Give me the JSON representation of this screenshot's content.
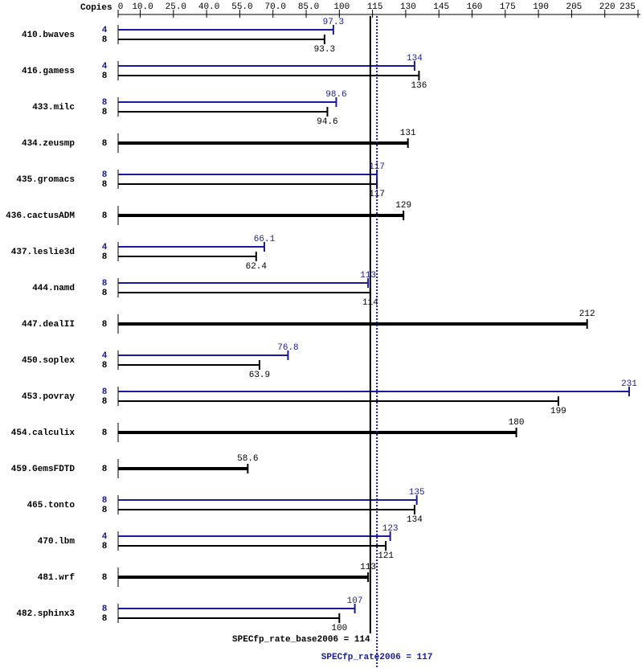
{
  "chart_data": {
    "type": "bar",
    "x_label": "Copies",
    "xlim": [
      0,
      235
    ],
    "xticks": [
      0,
      {
        "value": 10,
        "label": "10.0"
      },
      {
        "value": 25,
        "label": "25.0"
      },
      {
        "value": 40,
        "label": "40.0"
      },
      {
        "value": 55,
        "label": "55.0"
      },
      {
        "value": 70,
        "label": "70.0"
      },
      {
        "value": 85,
        "label": "85.0"
      },
      100,
      115,
      130,
      145,
      160,
      175,
      190,
      205,
      220,
      235
    ],
    "categories": [
      "410.bwaves",
      "416.gamess",
      "433.milc",
      "434.zeusmp",
      "435.gromacs",
      "436.cactusADM",
      "437.leslie3d",
      "444.namd",
      "447.dealII",
      "450.soplex",
      "453.povray",
      "454.calculix",
      "459.GemsFDTD",
      "465.tonto",
      "470.lbm",
      "481.wrf",
      "482.sphinx3"
    ],
    "series": [
      {
        "color": "#1a1aa0",
        "copies": [
          4,
          4,
          8,
          null,
          8,
          null,
          4,
          8,
          null,
          4,
          8,
          null,
          null,
          8,
          4,
          null,
          8
        ],
        "values": [
          97.3,
          134,
          98.6,
          null,
          117,
          null,
          66.1,
          113,
          null,
          76.8,
          231,
          null,
          null,
          135,
          123,
          null,
          107
        ]
      },
      {
        "color": "#000000",
        "copies": [
          8,
          8,
          8,
          8,
          8,
          8,
          8,
          8,
          8,
          8,
          8,
          8,
          8,
          8,
          8,
          8,
          8
        ],
        "values": [
          93.3,
          136,
          94.6,
          131,
          117,
          129,
          62.4,
          114,
          212,
          63.9,
          199,
          180,
          58.6,
          134,
          121,
          113,
          100
        ]
      }
    ],
    "reference_lines": [
      {
        "label": "SPECfp_rate_base2006 = 114",
        "value": 114,
        "color": "#000000",
        "style": "solid"
      },
      {
        "label": "SPECfp_rate2006 = 117",
        "value": 117,
        "color": "#1a1aa0",
        "style": "dotted"
      }
    ]
  }
}
